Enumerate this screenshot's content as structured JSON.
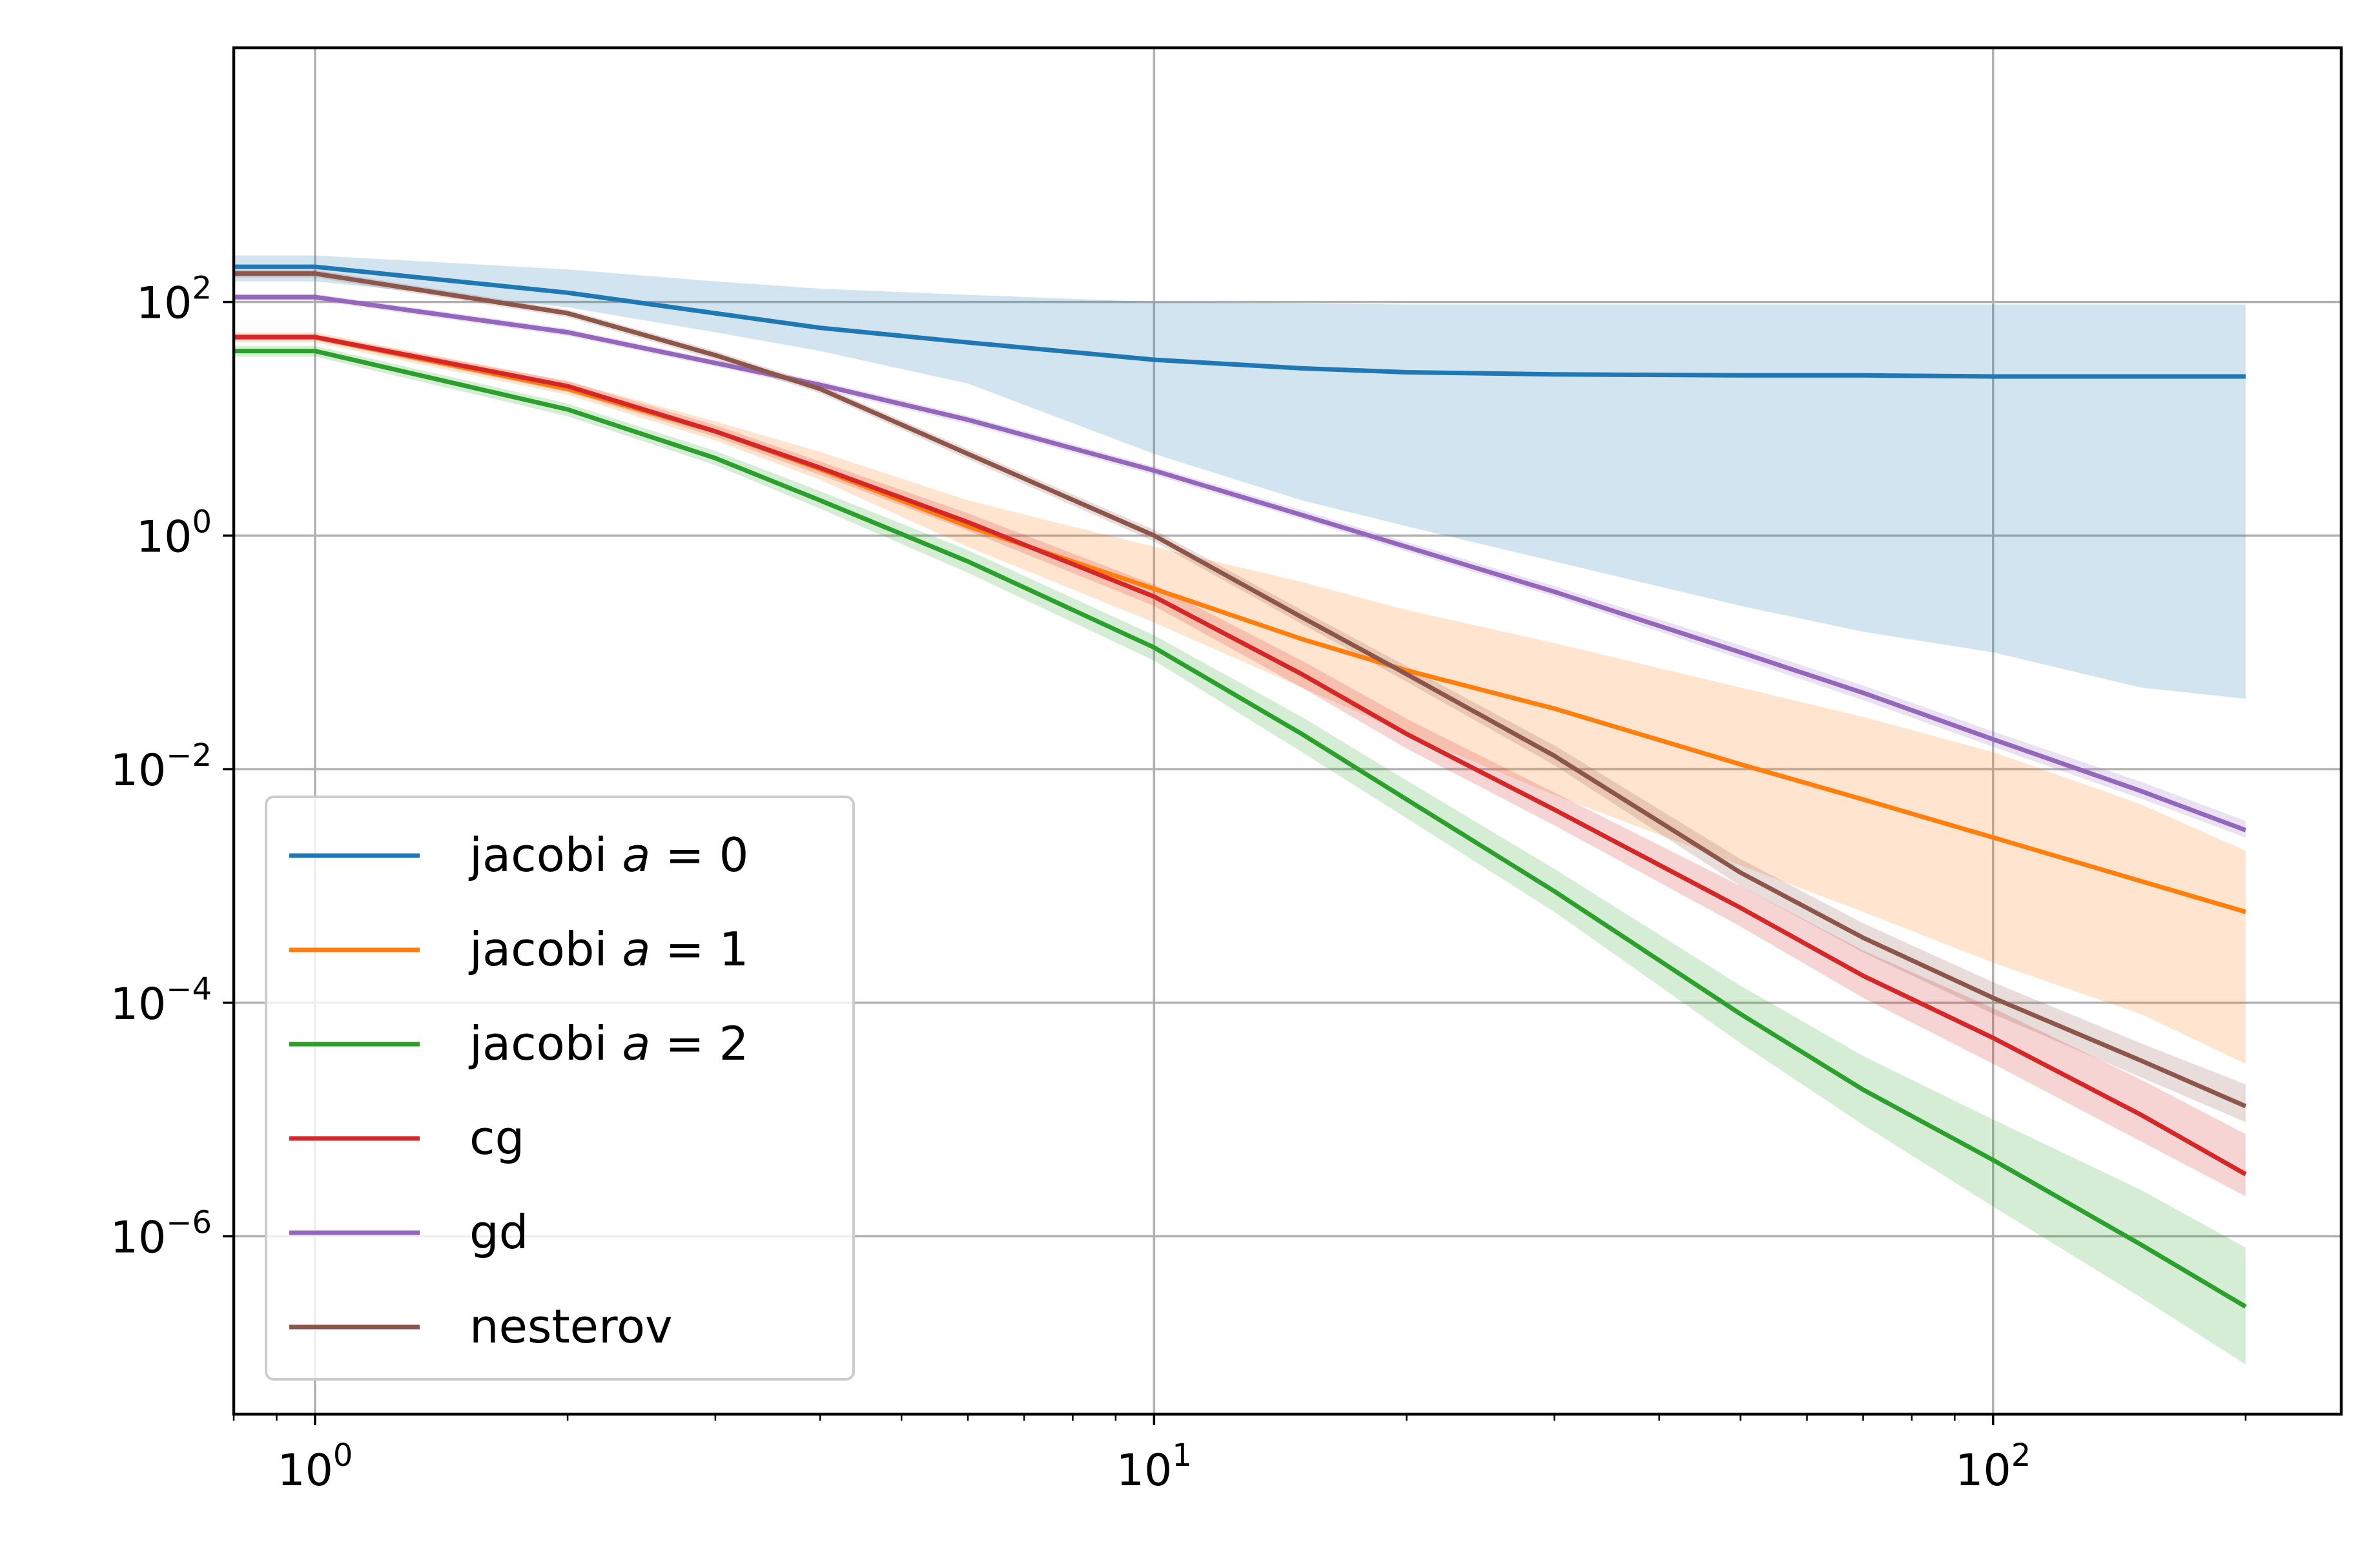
{
  "chart_data": {
    "type": "line",
    "title": "",
    "xlabel": "",
    "ylabel": "",
    "xscale": "log",
    "yscale": "log",
    "xlim": [
      0.8,
      260
    ],
    "ylim": [
      3e-08,
      15000
    ],
    "grid": true,
    "legend_position": "lower-left",
    "x_ticks": [
      {
        "value": 1,
        "base": "10",
        "exp": "0"
      },
      {
        "value": 10,
        "base": "10",
        "exp": "1"
      },
      {
        "value": 100,
        "base": "10",
        "exp": "2"
      }
    ],
    "y_ticks": [
      {
        "value": 100,
        "base": "10",
        "exp": "2"
      },
      {
        "value": 1,
        "base": "10",
        "exp": "0"
      },
      {
        "value": 0.01,
        "base": "10",
        "exp": "−2"
      },
      {
        "value": 0.0001,
        "base": "10",
        "exp": "−4"
      },
      {
        "value": 1e-06,
        "base": "10",
        "exp": "−6"
      }
    ],
    "x": [
      0.8,
      1,
      2,
      3,
      4,
      6,
      10,
      15,
      20,
      30,
      50,
      70,
      100,
      150,
      200
    ],
    "series": [
      {
        "name": "jacobi a=0",
        "label_text": "jacobi ",
        "label_var": "a",
        "label_eq": " = 0",
        "color": "#1f77b4",
        "values": [
          200,
          200,
          120,
          80,
          60,
          45,
          32,
          27,
          25,
          24,
          23.5,
          23.5,
          23,
          23,
          23
        ],
        "band_upper": [
          250,
          250,
          190,
          150,
          130,
          115,
          100,
          97,
          95,
          95,
          95,
          95,
          95,
          95,
          95
        ],
        "band_lower": [
          150,
          150,
          90,
          55,
          38,
          20,
          5,
          2,
          1.2,
          0.6,
          0.25,
          0.15,
          0.1,
          0.05,
          0.04
        ]
      },
      {
        "name": "jacobi a=1",
        "label_text": "jacobi ",
        "label_var": "a",
        "label_eq": " = 1",
        "color": "#ff7f0e",
        "values": [
          50,
          50,
          18,
          7.8,
          3.7,
          1.2,
          0.35,
          0.13,
          0.07,
          0.033,
          0.011,
          0.0055,
          0.0026,
          0.0011,
          0.0006
        ],
        "band_upper": [
          55,
          55,
          21,
          9.5,
          5.2,
          2,
          0.8,
          0.4,
          0.23,
          0.12,
          0.05,
          0.028,
          0.014,
          0.005,
          0.002
        ],
        "band_lower": [
          45,
          45,
          16,
          6.5,
          3,
          0.8,
          0.18,
          0.05,
          0.02,
          0.006,
          0.0015,
          0.0006,
          0.00022,
          8e-05,
          3e-05
        ]
      },
      {
        "name": "jacobi a=2",
        "label_text": "jacobi ",
        "label_var": "a",
        "label_eq": " = 2",
        "color": "#2ca02c",
        "values": [
          38,
          38,
          12,
          4.6,
          2,
          0.6,
          0.11,
          0.02,
          0.0055,
          0.0009,
          8e-05,
          1.8e-05,
          4.5e-06,
          8.5e-07,
          2.5e-07
        ],
        "band_upper": [
          42,
          42,
          13.5,
          5.3,
          2.4,
          0.75,
          0.14,
          0.028,
          0.008,
          0.0014,
          0.00014,
          3.5e-05,
          1e-05,
          2.5e-06,
          8e-07
        ],
        "band_lower": [
          34,
          34,
          10.5,
          4,
          1.7,
          0.48,
          0.085,
          0.014,
          0.0038,
          0.0006,
          4.5e-05,
          9e-06,
          1.8e-06,
          3e-07,
          8e-08
        ]
      },
      {
        "name": "cg",
        "label_text": "cg",
        "label_var": "",
        "label_eq": "",
        "color": "#d62728",
        "values": [
          50,
          50,
          19,
          7.8,
          3.8,
          1.3,
          0.3,
          0.065,
          0.02,
          0.0045,
          0.00065,
          0.00017,
          5e-05,
          1.1e-05,
          3.4e-06
        ],
        "band_upper": [
          53,
          53,
          21,
          8.8,
          4.3,
          1.55,
          0.38,
          0.085,
          0.027,
          0.0063,
          0.001,
          0.00028,
          9e-05,
          2.2e-05,
          7.5e-06
        ],
        "band_lower": [
          47,
          47,
          17,
          7,
          3.3,
          1.1,
          0.25,
          0.05,
          0.015,
          0.0033,
          0.00045,
          0.00011,
          3e-05,
          6.5e-06,
          2.2e-06
        ]
      },
      {
        "name": "gd",
        "label_text": "gd",
        "label_var": "",
        "label_eq": "",
        "color": "#9467bd",
        "values": [
          110,
          110,
          55,
          30,
          19.5,
          9.8,
          3.6,
          1.5,
          0.8,
          0.33,
          0.1,
          0.045,
          0.018,
          0.0065,
          0.003
        ],
        "band_upper": [
          117,
          117,
          59,
          32,
          21,
          10.6,
          3.9,
          1.65,
          0.88,
          0.37,
          0.115,
          0.052,
          0.021,
          0.0078,
          0.0036
        ],
        "band_lower": [
          103,
          103,
          51,
          28,
          18,
          9,
          3.3,
          1.38,
          0.73,
          0.3,
          0.088,
          0.039,
          0.0155,
          0.0056,
          0.0026
        ]
      },
      {
        "name": "nesterov",
        "label_text": "nesterov",
        "label_var": "",
        "label_eq": "",
        "color": "#8c564b",
        "values": [
          175,
          175,
          80,
          35,
          18,
          5,
          1,
          0.2,
          0.065,
          0.013,
          0.0013,
          0.00036,
          0.00011,
          3.2e-05,
          1.3e-05
        ],
        "band_upper": [
          188,
          188,
          86,
          38,
          19.5,
          5.5,
          1.12,
          0.23,
          0.076,
          0.016,
          0.0017,
          0.00048,
          0.00015,
          4.5e-05,
          2e-05
        ],
        "band_lower": [
          162,
          162,
          74,
          32,
          16.5,
          4.5,
          0.89,
          0.175,
          0.056,
          0.0108,
          0.001,
          0.00027,
          8e-05,
          2.3e-05,
          9.5e-06
        ]
      }
    ]
  }
}
